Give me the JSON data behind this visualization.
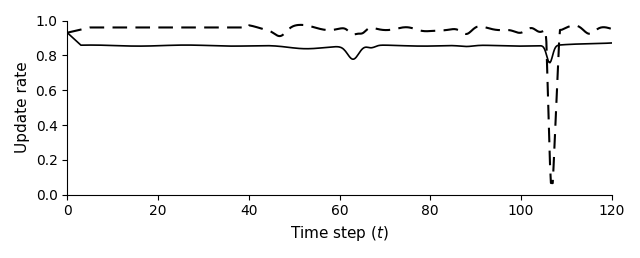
{
  "title": "",
  "xlabel": "Time step $(t)$",
  "ylabel": "Update rate",
  "xlim": [
    0,
    120
  ],
  "ylim": [
    0,
    1
  ],
  "xticks": [
    0,
    20,
    40,
    60,
    80,
    100,
    120
  ],
  "yticks": [
    0,
    0.2,
    0.4,
    0.6,
    0.8,
    1
  ],
  "solid_base": 0.856,
  "dashed_base": 0.96,
  "linewidth_solid": 1.2,
  "linewidth_dashed": 1.5,
  "color": "#000000",
  "figsize": [
    6.4,
    2.58
  ],
  "dpi": 100
}
